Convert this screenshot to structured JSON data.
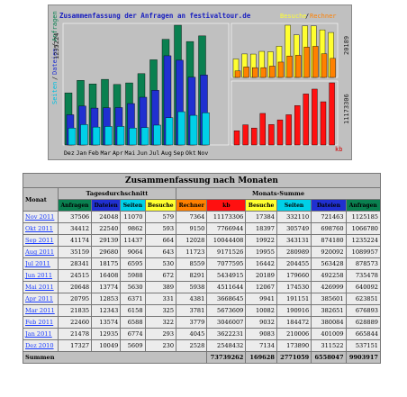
{
  "chart": {
    "title": "Zusammenfassung der Anfragen an festivaltour.de",
    "legend_left": [
      "Seiten",
      "Dateien",
      "Anfragen"
    ],
    "legend_right_top": [
      "Besuche",
      "Rechner"
    ],
    "max_left": "1235224",
    "max_right_top": "20189",
    "max_right_bottom": "11173306",
    "kb_label": "kb",
    "x_labels": [
      "Dez",
      "Jan",
      "Feb",
      "Mar",
      "Apr",
      "Mai",
      "Jun",
      "Jul",
      "Aug",
      "Sep",
      "Okt",
      "Nov"
    ],
    "colors": {
      "anfragen": "#0a8050",
      "dateien": "#2030d0",
      "seiten": "#00d0e8",
      "besuche": "#ffff30",
      "rechner": "#ff8000",
      "kb": "#ff1010",
      "title": "#1a20c0"
    }
  },
  "table": {
    "title": "Zusammenfassung nach Monaten",
    "monat_header": "Monat",
    "group_daily": "Tagesdurchschnitt",
    "group_month": "Monats-Summe",
    "cols": {
      "anfragen": "Anfragen",
      "dateien": "Dateien",
      "seiten": "Seiten",
      "besuche": "Besuche",
      "rechner": "Rechner",
      "kb": "kb"
    },
    "rows": [
      {
        "month": "Nov 2011",
        "d_anf": "37506",
        "d_dat": "24048",
        "d_sei": "11070",
        "d_bes": "579",
        "m_rec": "7364",
        "m_kb": "11173306",
        "m_bes": "17384",
        "m_sei": "332110",
        "m_dat": "721463",
        "m_anf": "1125185"
      },
      {
        "month": "Okt 2011",
        "d_anf": "34412",
        "d_dat": "22540",
        "d_sei": "9862",
        "d_bes": "593",
        "m_rec": "9150",
        "m_kb": "7766944",
        "m_bes": "18397",
        "m_sei": "305749",
        "m_dat": "698760",
        "m_anf": "1066780"
      },
      {
        "month": "Sep 2011",
        "d_anf": "41174",
        "d_dat": "29139",
        "d_sei": "11437",
        "d_bes": "664",
        "m_rec": "12028",
        "m_kb": "10044408",
        "m_bes": "19922",
        "m_sei": "343131",
        "m_dat": "874180",
        "m_anf": "1235224"
      },
      {
        "month": "Aug 2011",
        "d_anf": "35159",
        "d_dat": "29680",
        "d_sei": "9064",
        "d_bes": "643",
        "m_rec": "11723",
        "m_kb": "9171526",
        "m_bes": "19955",
        "m_sei": "280989",
        "m_dat": "920092",
        "m_anf": "1089957"
      },
      {
        "month": "Jul 2011",
        "d_anf": "28341",
        "d_dat": "18175",
        "d_sei": "6595",
        "d_bes": "530",
        "m_rec": "8559",
        "m_kb": "7077595",
        "m_bes": "16442",
        "m_sei": "204455",
        "m_dat": "563428",
        "m_anf": "878573"
      },
      {
        "month": "Jun 2011",
        "d_anf": "24515",
        "d_dat": "16408",
        "d_sei": "5988",
        "d_bes": "672",
        "m_rec": "8291",
        "m_kb": "5434915",
        "m_bes": "20189",
        "m_sei": "179660",
        "m_dat": "492258",
        "m_anf": "735478"
      },
      {
        "month": "Mai 2011",
        "d_anf": "20648",
        "d_dat": "13774",
        "d_sei": "5630",
        "d_bes": "389",
        "m_rec": "5938",
        "m_kb": "4511644",
        "m_bes": "12067",
        "m_sei": "174530",
        "m_dat": "426999",
        "m_anf": "640092"
      },
      {
        "month": "Apr 2011",
        "d_anf": "20795",
        "d_dat": "12853",
        "d_sei": "6371",
        "d_bes": "331",
        "m_rec": "4381",
        "m_kb": "3668645",
        "m_bes": "9941",
        "m_sei": "191151",
        "m_dat": "385601",
        "m_anf": "623851"
      },
      {
        "month": "Mar 2011",
        "d_anf": "21835",
        "d_dat": "12343",
        "d_sei": "6158",
        "d_bes": "325",
        "m_rec": "3781",
        "m_kb": "5673609",
        "m_bes": "10082",
        "m_sei": "190916",
        "m_dat": "382651",
        "m_anf": "676893"
      },
      {
        "month": "Feb 2011",
        "d_anf": "22460",
        "d_dat": "13574",
        "d_sei": "6588",
        "d_bes": "322",
        "m_rec": "3779",
        "m_kb": "3046007",
        "m_bes": "9032",
        "m_sei": "184472",
        "m_dat": "380084",
        "m_anf": "628889"
      },
      {
        "month": "Jan 2011",
        "d_anf": "21478",
        "d_dat": "12935",
        "d_sei": "6774",
        "d_bes": "293",
        "m_rec": "4045",
        "m_kb": "3622231",
        "m_bes": "9083",
        "m_sei": "210006",
        "m_dat": "401009",
        "m_anf": "665844"
      },
      {
        "month": "Dez 2010",
        "d_anf": "17327",
        "d_dat": "10049",
        "d_sei": "5609",
        "d_bes": "230",
        "m_rec": "2528",
        "m_kb": "2548432",
        "m_bes": "7134",
        "m_sei": "173890",
        "m_dat": "311522",
        "m_anf": "537151"
      }
    ],
    "sum": {
      "label": "Summen",
      "m_kb": "73739262",
      "m_bes": "169628",
      "m_sei": "2771059",
      "m_dat": "6558047",
      "m_anf": "9903917"
    }
  }
}
